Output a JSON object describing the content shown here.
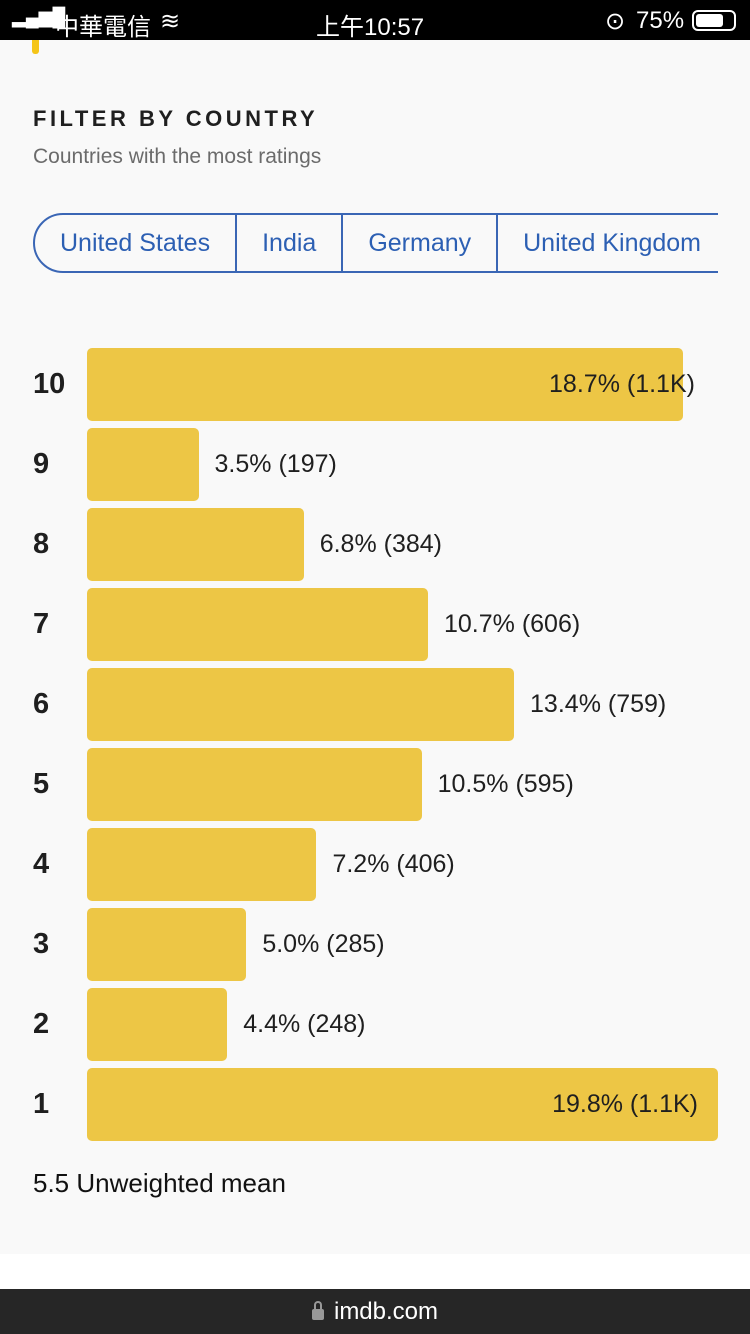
{
  "status_bar": {
    "carrier": "中華電信",
    "time": "上午10:57",
    "battery": "75%"
  },
  "filter": {
    "title": "FILTER BY COUNTRY",
    "subtitle": "Countries with the most ratings",
    "tabs": [
      "United States",
      "India",
      "Germany",
      "United Kingdom"
    ]
  },
  "chart_data": {
    "type": "bar",
    "orientation": "horizontal",
    "categories": [
      "10",
      "9",
      "8",
      "7",
      "6",
      "5",
      "4",
      "3",
      "2",
      "1"
    ],
    "values": [
      18.7,
      3.5,
      6.8,
      10.7,
      13.4,
      10.5,
      7.2,
      5.0,
      4.4,
      19.8
    ],
    "counts": [
      "1.1K",
      "197",
      "384",
      "606",
      "759",
      "595",
      "406",
      "285",
      "248",
      "1.1K"
    ],
    "labels": [
      "18.7% (1.1K)",
      "3.5% (197)",
      "6.8% (384)",
      "10.7% (606)",
      "13.4% (759)",
      "10.5% (595)",
      "7.2% (406)",
      "5.0% (285)",
      "4.4% (248)",
      "19.8% (1.1K)"
    ],
    "bar_color": "#edc645"
  },
  "mean_text": "5.5 Unweighted mean",
  "url": "imdb.com"
}
